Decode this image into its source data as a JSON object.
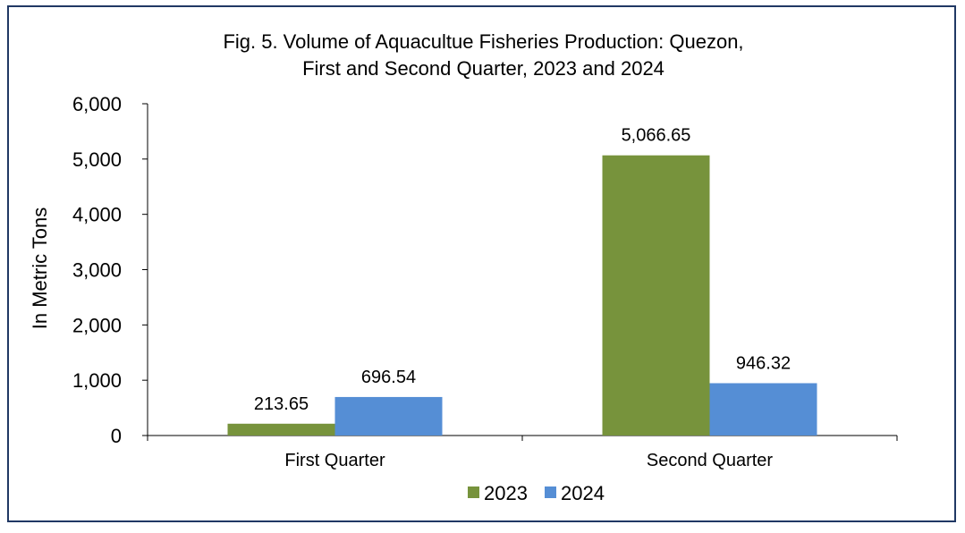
{
  "chart_data": {
    "type": "bar",
    "title_line1": "Fig. 5. Volume of Aquacultue Fisheries  Production: Quezon,",
    "title_line2": "First and Second Quarter, 2023 and 2024",
    "xlabel": "",
    "ylabel": "In Metric Tons",
    "categories": [
      "First Quarter",
      "Second Quarter"
    ],
    "series": [
      {
        "name": "2023",
        "color": "#77933C",
        "values": [
          213.65,
          5066.65
        ],
        "labels": [
          "213.65",
          "5,066.65"
        ]
      },
      {
        "name": "2024",
        "color": "#558ED5",
        "values": [
          696.54,
          946.32
        ],
        "labels": [
          "696.54",
          "946.32"
        ]
      }
    ],
    "ylim": [
      0,
      6000
    ],
    "yticks": [
      0,
      1000,
      2000,
      3000,
      4000,
      5000,
      6000
    ],
    "ytick_labels": [
      "0",
      "1,000",
      "2,000",
      "3,000",
      "4,000",
      "5,000",
      "6,000"
    ],
    "grid": false,
    "legend_position": "bottom"
  },
  "colors": {
    "border": "#203864",
    "axis": "#000000"
  }
}
